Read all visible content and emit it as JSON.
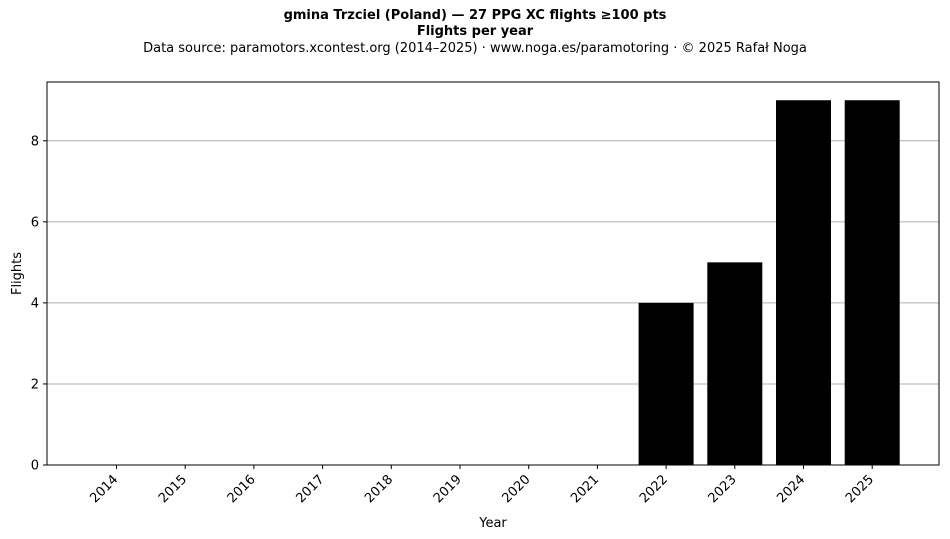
{
  "chart_data": {
    "type": "bar",
    "title": "gmina Trzciel (Poland)  —  27 PPG XC flights ≥100 pts",
    "title2": "Flights per year",
    "subtitle": "Data source: paramotors.xcontest.org (2014–2025)  ·  www.noga.es/paramotoring  ·  © 2025 Rafał Noga",
    "xlabel": "Year",
    "ylabel": "Flights",
    "categories": [
      "2014",
      "2015",
      "2016",
      "2017",
      "2018",
      "2019",
      "2020",
      "2021",
      "2022",
      "2023",
      "2024",
      "2025"
    ],
    "values": [
      0,
      0,
      0,
      0,
      0,
      0,
      0,
      0,
      4,
      5,
      9,
      9
    ],
    "ylim": [
      0,
      9.45
    ],
    "yticks": [
      0,
      2,
      4,
      6,
      8
    ],
    "grid": "horizontal",
    "bar_color": "#000000",
    "grid_color": "#b0b0b0"
  }
}
